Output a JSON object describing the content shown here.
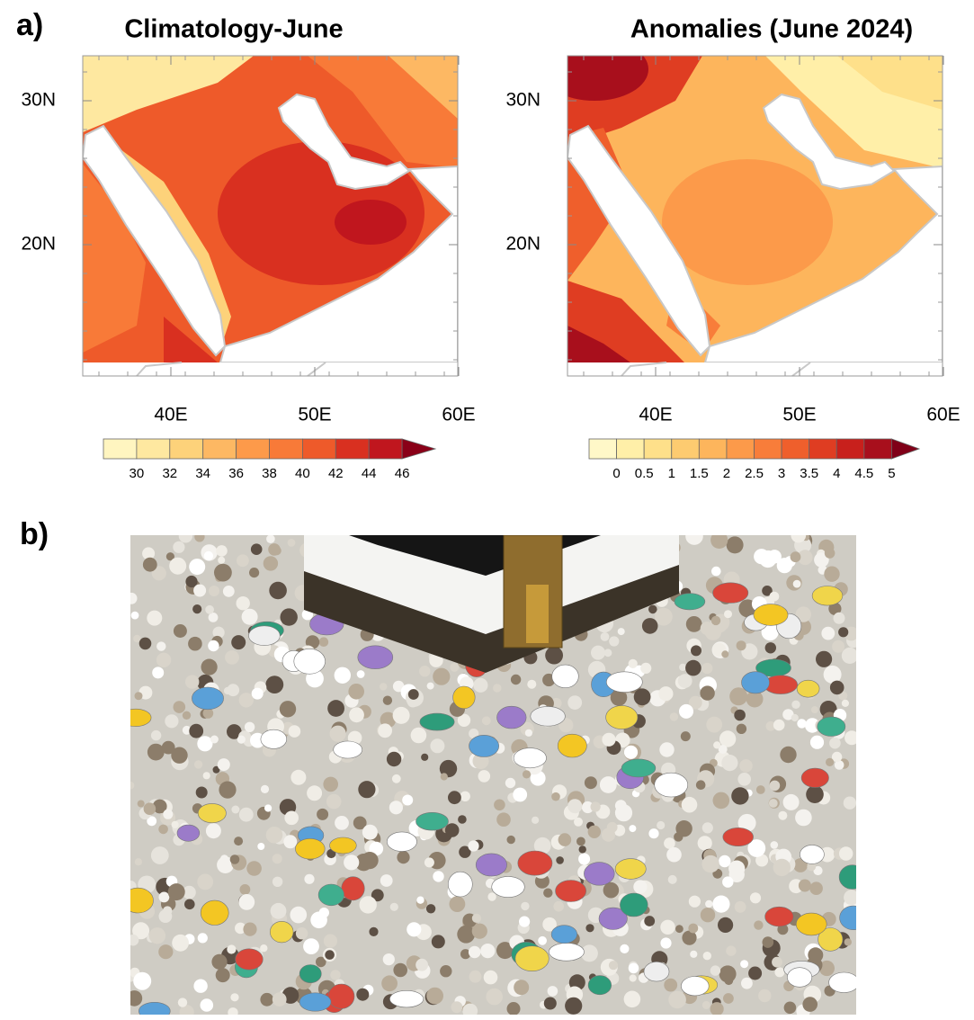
{
  "panel_a": {
    "label": "a)",
    "maps": [
      {
        "title": "Climatology-June",
        "lat_labels": [
          "30N",
          "20N"
        ],
        "lon_labels": [
          "40E",
          "50E",
          "60E"
        ],
        "colorbar": {
          "ticks": [
            30,
            32,
            34,
            36,
            38,
            40,
            42,
            44,
            46
          ],
          "colors": [
            "#fff5c0",
            "#fee8a0",
            "#fdd27a",
            "#fdb863",
            "#fd9a4a",
            "#f87a38",
            "#ee5a2a",
            "#d93020",
            "#c0161e",
            "#8a0018"
          ]
        }
      },
      {
        "title": "Anomalies (June 2024)",
        "lat_labels": [
          "30N",
          "20N"
        ],
        "lon_labels": [
          "40E",
          "50E",
          "60E"
        ],
        "colorbar": {
          "ticks": [
            0,
            0.5,
            1,
            1.5,
            2,
            2.5,
            3,
            3.5,
            4,
            4.5,
            5
          ],
          "colors": [
            "#fff8c8",
            "#ffefa8",
            "#fee08a",
            "#fdcb70",
            "#fdb55c",
            "#fc9a4a",
            "#f87d3a",
            "#ef5f2c",
            "#df3d22",
            "#c8201c",
            "#a80f1c",
            "#800018"
          ]
        }
      }
    ]
  },
  "panel_b": {
    "label": "b)"
  }
}
